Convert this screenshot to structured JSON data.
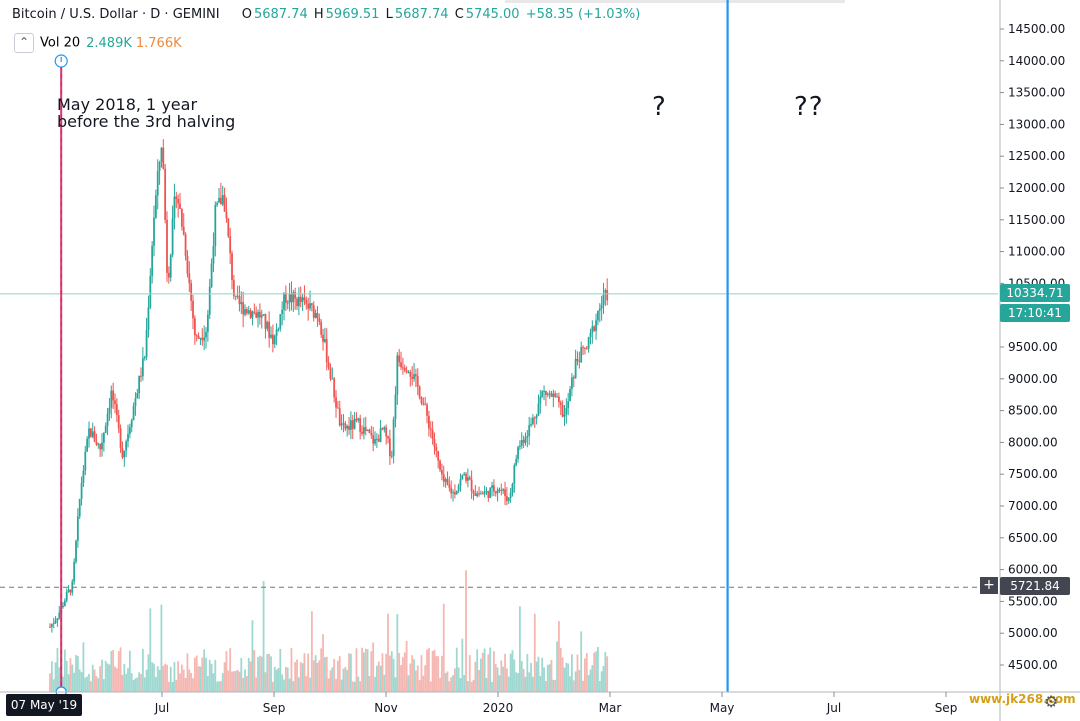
{
  "header": {
    "symbol": "Bitcoin / U.S. Dollar · D · GEMINI",
    "open_label": "O",
    "open": "5687.74",
    "high_label": "H",
    "high": "5969.51",
    "low_label": "L",
    "low": "5687.74",
    "close_label": "C",
    "close": "5745.00",
    "change": "+58.35 (+1.03%)"
  },
  "volume_legend": {
    "toggle_icon": "chevron-up-icon",
    "label": "Vol 20",
    "value1": "2.489K",
    "value2": "1.766K"
  },
  "annotations": {
    "note": "May 2018, 1 year\nbefore the 3rd halving",
    "q1": "?",
    "q2": "??"
  },
  "markers": {
    "current_price": "10334.71",
    "countdown": "17:10:41",
    "crosshair_price": "5721.84",
    "crosshair_date": "07 May '19",
    "plus_icon": "+"
  },
  "watermark": "www.jk268.com",
  "colors": {
    "up": "#26a69a",
    "down": "#ef5350",
    "halving_line": "#e91e63",
    "future_line": "#2196f3"
  },
  "chart_data": {
    "type": "candlestick",
    "symbol": "BTCUSD",
    "interval": "D",
    "y_ticks": [
      4500,
      5000,
      5500,
      6000,
      6500,
      7000,
      7500,
      8000,
      8500,
      9000,
      9500,
      10000,
      10500,
      11000,
      11500,
      12000,
      12500,
      13000,
      13500,
      14000,
      14500
    ],
    "y_tick_labels": [
      "4500.00",
      "5000.00",
      "5500.00",
      "6000.00",
      "6500.00",
      "7000.00",
      "7500.00",
      "8000.00",
      "8500.00",
      "9000.00",
      "9500.00",
      "10000.00",
      "10500.00",
      "11000.00",
      "11500.00",
      "12000.00",
      "12500.00",
      "13000.00",
      "13500.00",
      "14000.00",
      "14500.00"
    ],
    "x_labels": [
      "Jul",
      "Sep",
      "Nov",
      "2020",
      "Mar",
      "May",
      "Jul",
      "Sep"
    ],
    "x_label_months": [
      2,
      4,
      6,
      8,
      10,
      12,
      14,
      16
    ],
    "price_path": [
      [
        0,
        5100
      ],
      [
        0.15,
        5300
      ],
      [
        0.3,
        5600
      ],
      [
        0.4,
        5750
      ],
      [
        0.55,
        7300
      ],
      [
        0.7,
        8200
      ],
      [
        0.9,
        7900
      ],
      [
        1.1,
        8800
      ],
      [
        1.3,
        7800
      ],
      [
        1.5,
        8600
      ],
      [
        1.7,
        9400
      ],
      [
        1.85,
        11500
      ],
      [
        2.0,
        12800
      ],
      [
        2.1,
        10500
      ],
      [
        2.25,
        12000
      ],
      [
        2.4,
        11200
      ],
      [
        2.6,
        9600
      ],
      [
        2.8,
        9800
      ],
      [
        2.95,
        11600
      ],
      [
        3.1,
        11900
      ],
      [
        3.3,
        10200
      ],
      [
        3.5,
        10100
      ],
      [
        3.75,
        10000
      ],
      [
        4.0,
        9600
      ],
      [
        4.2,
        10300
      ],
      [
        4.5,
        10200
      ],
      [
        4.8,
        10000
      ],
      [
        5.0,
        9100
      ],
      [
        5.2,
        8200
      ],
      [
        5.5,
        8300
      ],
      [
        5.8,
        8000
      ],
      [
        5.95,
        8200
      ],
      [
        6.1,
        7800
      ],
      [
        6.2,
        9300
      ],
      [
        6.4,
        9200
      ],
      [
        6.6,
        8800
      ],
      [
        6.8,
        8200
      ],
      [
        7.0,
        7400
      ],
      [
        7.2,
        7200
      ],
      [
        7.4,
        7500
      ],
      [
        7.6,
        7200
      ],
      [
        7.8,
        7200
      ],
      [
        8.0,
        7300
      ],
      [
        8.2,
        7100
      ],
      [
        8.35,
        7900
      ],
      [
        8.6,
        8300
      ],
      [
        8.8,
        8800
      ],
      [
        9.0,
        8700
      ],
      [
        9.2,
        8400
      ],
      [
        9.4,
        9300
      ],
      [
        9.6,
        9500
      ],
      [
        9.8,
        10100
      ],
      [
        9.95,
        10334.71
      ]
    ],
    "current_price": 10334.71,
    "crosshair_price": 5721.84,
    "vertical_lines": [
      {
        "month": 0.2,
        "name": "halving-countdown-line"
      },
      {
        "month": 12.1,
        "name": "future-line"
      }
    ]
  }
}
